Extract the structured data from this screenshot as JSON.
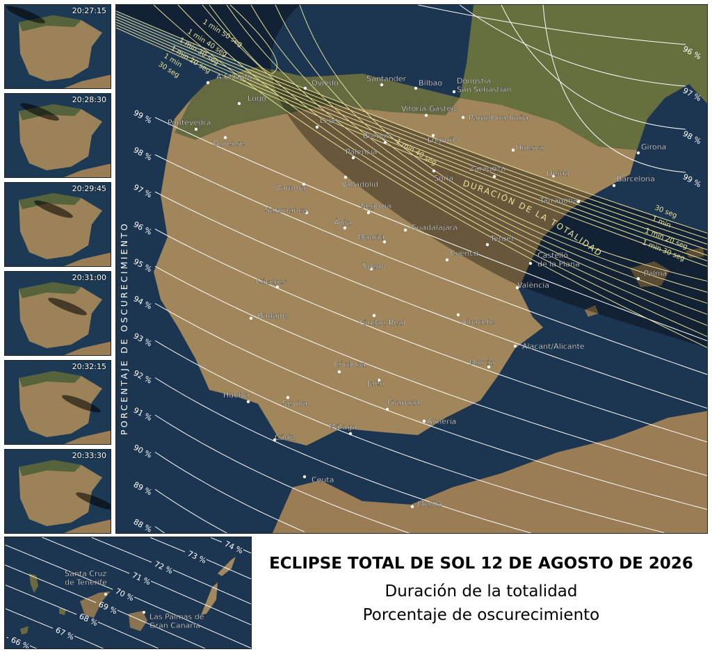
{
  "title": "ECLIPSE TOTAL DE SOL 12 DE AGOSTO DE 2026",
  "subtitle_1": "Duración de la totalidad",
  "subtitle_2": "Porcentaje de oscurecimiento",
  "thumbnails": [
    {
      "time": "20:27:15",
      "shadow_progress": 0.0
    },
    {
      "time": "20:28:30",
      "shadow_progress": 0.2
    },
    {
      "time": "20:29:45",
      "shadow_progress": 0.4
    },
    {
      "time": "20:31:00",
      "shadow_progress": 0.6
    },
    {
      "time": "20:32:15",
      "shadow_progress": 0.8
    },
    {
      "time": "20:33:30",
      "shadow_progress": 1.0
    }
  ],
  "map": {
    "vertical_label": "PORCENTAJE DE OSCURECIMIENTO",
    "band_label": "DURACIÓN DE LA TOTALIDAD",
    "duration_labels_nw": [
      "1 min 50 seg",
      "1 min 40 seg",
      "1 min 30 seg",
      "1 min 20 seg",
      "1 min",
      "30 seg"
    ],
    "duration_labels_se": [
      "30 seg",
      "1 min",
      "1 min 20 seg",
      "1 min 30 seg"
    ],
    "duration_label_center": "1 min 40 seg",
    "percent_labels_left": [
      "99 %",
      "98 %",
      "97 %",
      "96 %",
      "95 %",
      "94 %",
      "93 %",
      "92 %",
      "91 %",
      "90 %",
      "89 %",
      "88 %"
    ],
    "percent_labels_right": [
      "96 %",
      "97 %",
      "98 %",
      "99 %"
    ],
    "cities": [
      "A Coruña",
      "Lugo",
      "Oviedo",
      "Santander",
      "Bilbao",
      "Donostia\nSan Sebastián",
      "Pontevedra",
      "Ourense",
      "León",
      "Vitoria-Gasteiz",
      "Pamplona/Iruña",
      "Burgos",
      "Logroño",
      "Huesca",
      "Girona",
      "Palencia",
      "Zaragoza",
      "Lleida",
      "Barcelona",
      "Valladolid",
      "Soria",
      "Zamora",
      "Tarragona",
      "Salamanca",
      "Segovia",
      "Ávila",
      "Guadalajara",
      "Madrid",
      "Teruel",
      "Cuenca",
      "Castelló\nde la Plana",
      "Palma",
      "Cáceres",
      "Toledo",
      "València",
      "Badajoz",
      "Ciudad Real",
      "Albacete",
      "Alacant/Alicante",
      "Córdoba",
      "Murcia",
      "Jaén",
      "Huelva",
      "Sevilla",
      "Granada",
      "Almería",
      "Málaga",
      "Cádiz",
      "Ceuta",
      "Melilla"
    ],
    "colors": {
      "sea": "#1c3550",
      "land": "#a58a5e",
      "green": "#5d6b3a",
      "duration_line": "#e8e29a",
      "percent_line": "#ffffff"
    }
  },
  "inset": {
    "percent_labels": [
      "74 %",
      "73 %",
      "72 %",
      "71 %",
      "70 %",
      "69 %",
      "68 %",
      "67 %",
      "66 %"
    ],
    "cities": [
      "Santa Cruz\nde Tenerife",
      "Las Palmas de\nGran Canaria"
    ]
  }
}
